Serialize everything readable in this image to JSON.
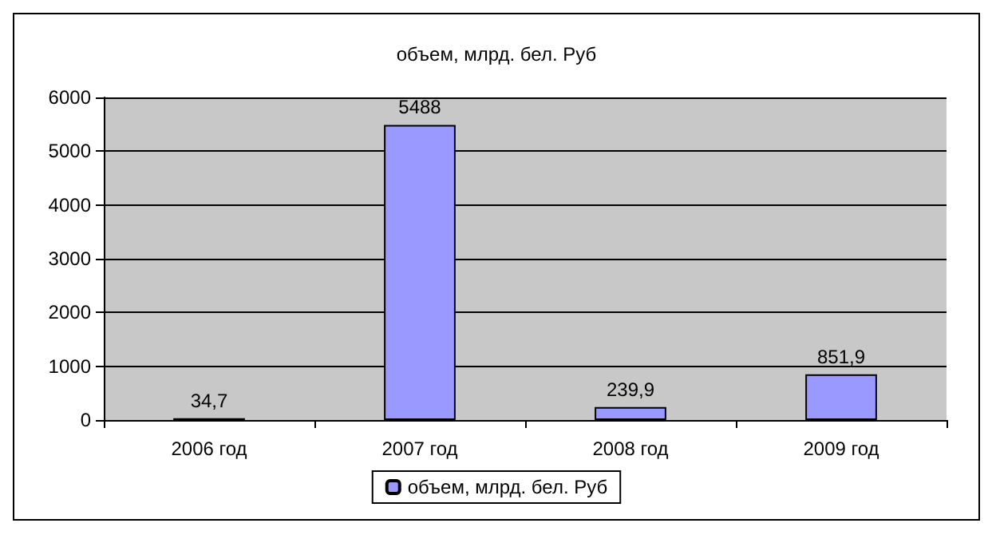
{
  "chart_data": {
    "type": "bar",
    "title": "объем, млрд. бел. Руб",
    "categories": [
      "2006 год",
      "2007 год",
      "2008 год",
      "2009 год"
    ],
    "series": [
      {
        "name": "объем, млрд. бел. Руб",
        "color": "#9999ff",
        "values": [
          34.7,
          5488,
          239.9,
          851.9
        ],
        "value_labels": [
          "34,7",
          "5488",
          "239,9",
          "851,9"
        ]
      }
    ],
    "ylim": [
      0,
      6000
    ],
    "yticks": [
      0,
      1000,
      2000,
      3000,
      4000,
      5000,
      6000
    ],
    "grid": "y",
    "legend": "bottom"
  }
}
